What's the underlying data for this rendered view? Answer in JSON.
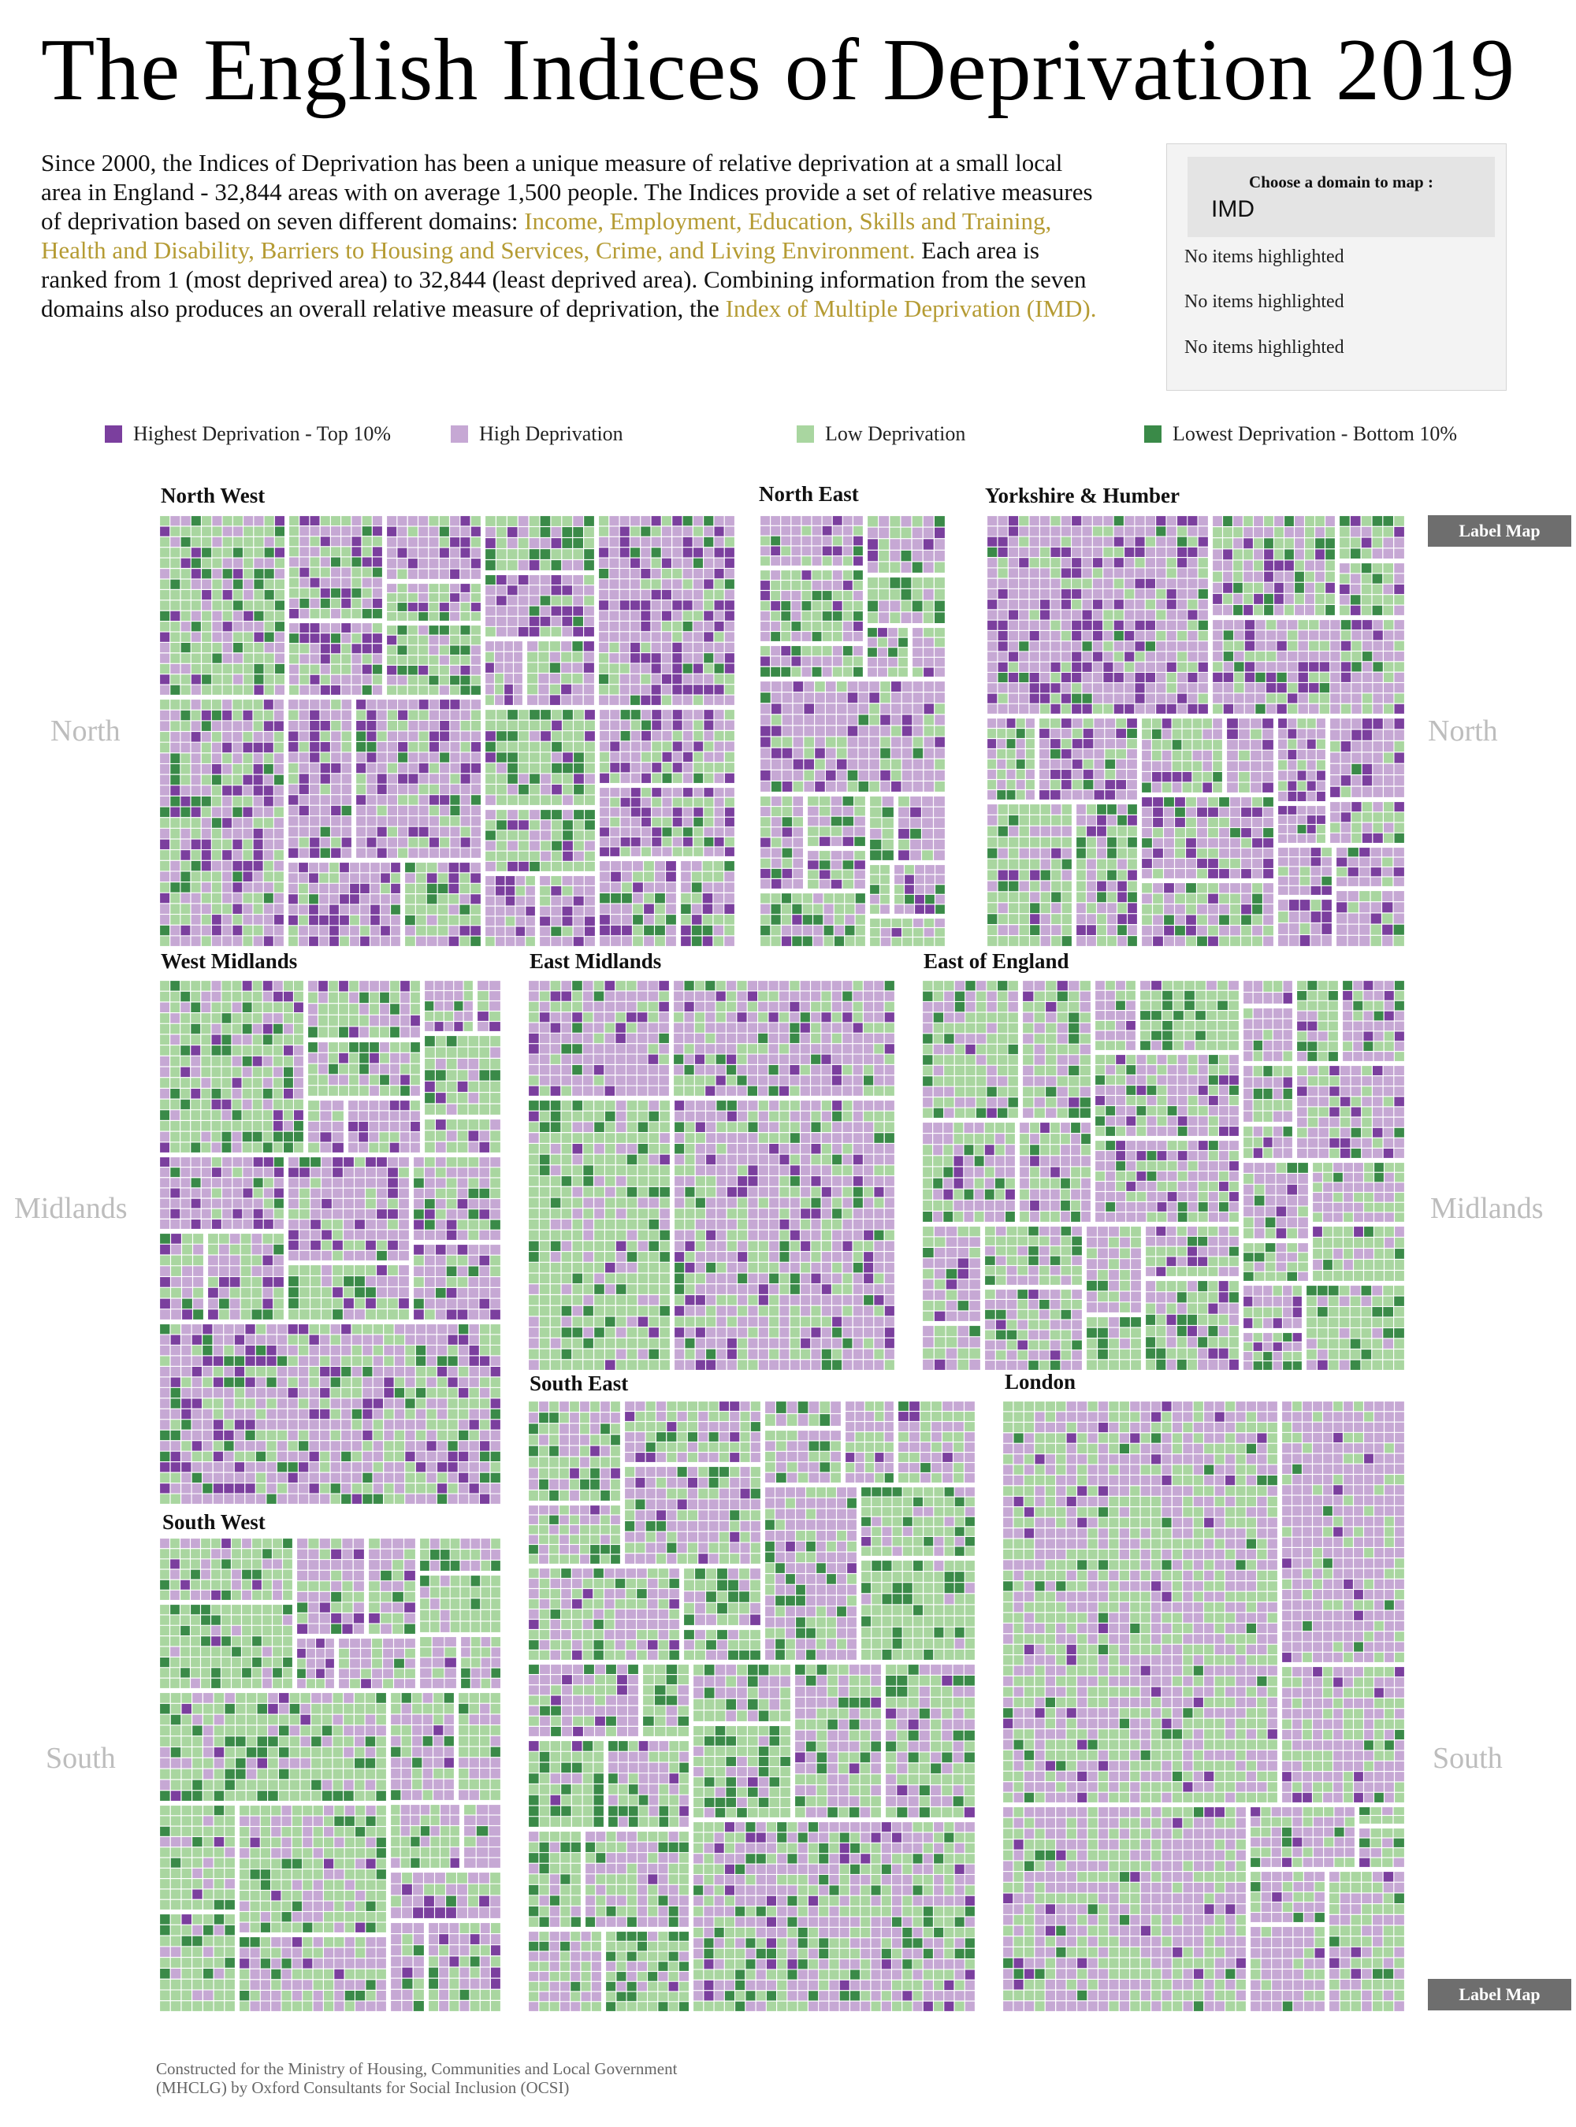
{
  "header": {
    "title": "The English Indices of Deprivation 2019",
    "intro_1": "Since 2000, the Indices of Deprivation has been a unique measure of relative deprivation at a small local area in England - 32,844 areas with on average 1,500 people.  The Indices provide a set of relative measures of deprivation based on seven different domains: ",
    "intro_domains": "Income, Employment, Education, Skills and Training, Health and Disability, Barriers to Housing and Services, Crime, and Living Environment.",
    "intro_2": " Each area is ranked from 1 (most deprived area) to 32,844 (least deprived area). Combining information from the seven domains also produces an overall relative measure of deprivation, the ",
    "intro_imd": "Index of Multiple Deprivation (IMD)."
  },
  "control": {
    "prompt": "Choose a domain to map :",
    "selected": "IMD",
    "notes": [
      "No items highlighted",
      "No items highlighted",
      "No items highlighted"
    ]
  },
  "buttons": {
    "label_map_top": "Label Map",
    "label_map_bottom": "Label Map"
  },
  "side_labels": {
    "north_left": "North",
    "north_right": "North",
    "midlands_left": "Midlands",
    "midlands_right": "Midlands",
    "south_left": "South",
    "south_right": "South"
  },
  "footer": "Constructed for the Ministry of Housing, Communities and Local Government (MHCLG) by Oxford Consultants for Social Inclusion (OCSI)",
  "colors": {
    "highest": "#7b3f9e",
    "high": "#c6a8d4",
    "low": "#a9d6a0",
    "lowest": "#3a8a48"
  },
  "chart_data": {
    "type": "heatmap",
    "legend": [
      {
        "label": "Highest Deprivation - Top 10%",
        "color": "#7b3f9e"
      },
      {
        "label": "High Deprivation",
        "color": "#c6a8d4"
      },
      {
        "label": "Low Deprivation",
        "color": "#a9d6a0"
      },
      {
        "label": "Lowest Deprivation - Bottom 10%",
        "color": "#3a8a48"
      }
    ],
    "regions": [
      {
        "name": "North West",
        "group": "North",
        "mix": [
          0.17,
          0.41,
          0.32,
          0.1
        ]
      },
      {
        "name": "North East",
        "group": "North",
        "mix": [
          0.12,
          0.43,
          0.35,
          0.1
        ]
      },
      {
        "name": "Yorkshire & Humber",
        "group": "North",
        "mix": [
          0.15,
          0.42,
          0.33,
          0.1
        ]
      },
      {
        "name": "West Midlands",
        "group": "Midlands",
        "mix": [
          0.13,
          0.42,
          0.36,
          0.09
        ]
      },
      {
        "name": "East Midlands",
        "group": "Midlands",
        "mix": [
          0.07,
          0.38,
          0.44,
          0.11
        ]
      },
      {
        "name": "East of England",
        "group": "Midlands",
        "mix": [
          0.04,
          0.32,
          0.5,
          0.14
        ]
      },
      {
        "name": "London",
        "group": "South",
        "mix": [
          0.03,
          0.52,
          0.41,
          0.04
        ]
      },
      {
        "name": "South East",
        "group": "South",
        "mix": [
          0.02,
          0.25,
          0.53,
          0.2
        ]
      },
      {
        "name": "South West",
        "group": "South",
        "mix": [
          0.04,
          0.32,
          0.53,
          0.11
        ]
      }
    ]
  }
}
